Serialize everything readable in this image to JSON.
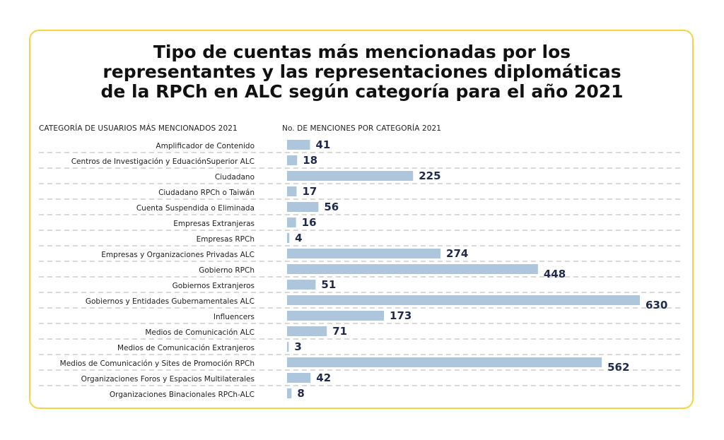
{
  "chart_data": {
    "type": "bar",
    "title": [
      "Tipo de cuentas más mencionadas por los",
      "representantes y las representaciones diplomáticas",
      "de la RPCh en ALC según categoría para el año 2021"
    ],
    "xlabel": "No. DE MENCIONES POR CATEGORÍA 2021",
    "ylabel": "CATEGORÍA DE USUARIOS MÁS MENCIONADOS 2021",
    "categories": [
      "Amplificador de Contenido",
      "Centros de Investigación y EduaciónSuperior ALC",
      "Ciudadano",
      "Ciudadano RPCh o Taiwán",
      "Cuenta Suspendida o Eliminada",
      "Empresas Extranjeras",
      "Empresas RPCh",
      "Empresas y Organizaciones Privadas ALC",
      "Gobierno RPCh",
      "Gobiernos Extranjeros",
      "Gobiernos y Entidades Gubernamentales ALC",
      "Influencers",
      "Medios de Comunicación ALC",
      "Medios de Comunicación Extranjeros",
      "Medios de Comunicación y Sites de Promoción RPCh",
      "Organizaciones Foros y Espacios Multilaterales",
      "Organizaciones Binacionales RPCh-ALC"
    ],
    "values": [
      41,
      18,
      225,
      17,
      56,
      16,
      4,
      274,
      448,
      51,
      630,
      173,
      71,
      3,
      562,
      42,
      8
    ],
    "xlim": [
      0,
      630
    ],
    "grid": false,
    "bar_color": "#adc6dc",
    "label_color": "#1f2a4d",
    "border_color": "#f5d547"
  }
}
